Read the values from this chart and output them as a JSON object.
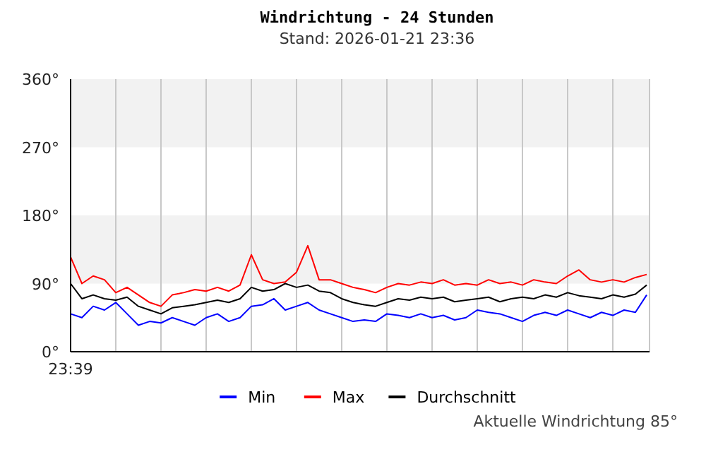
{
  "chart_data": {
    "type": "line",
    "title": "Windrichtung - 24 Stunden",
    "subtitle": "Stand: 2026-01-21 23:36",
    "categories": [
      "23:39",
      null,
      null,
      null,
      null,
      null,
      null,
      null,
      null,
      null,
      null,
      null,
      null,
      null,
      null,
      null,
      null,
      null,
      null,
      null,
      null,
      null,
      null,
      null,
      null,
      null,
      null,
      null,
      null,
      null,
      null,
      null,
      null,
      null,
      null,
      null,
      null,
      null,
      null,
      null,
      null,
      null,
      null,
      null,
      null,
      null,
      null,
      null,
      null,
      null,
      null,
      null
    ],
    "series": [
      {
        "name": "Min",
        "color": "#0000ff",
        "values": [
          50,
          45,
          60,
          55,
          65,
          50,
          35,
          40,
          38,
          45,
          40,
          35,
          45,
          50,
          40,
          45,
          60,
          62,
          70,
          55,
          60,
          65,
          55,
          50,
          45,
          40,
          42,
          40,
          50,
          48,
          45,
          50,
          45,
          48,
          42,
          45,
          55,
          52,
          50,
          45,
          40,
          48,
          52,
          48,
          55,
          50,
          45,
          52,
          48,
          55,
          52,
          75
        ]
      },
      {
        "name": "Max",
        "color": "#ff0000",
        "values": [
          125,
          90,
          100,
          95,
          78,
          85,
          75,
          65,
          60,
          75,
          78,
          82,
          80,
          85,
          80,
          88,
          128,
          95,
          90,
          92,
          105,
          140,
          95,
          95,
          90,
          85,
          82,
          78,
          85,
          90,
          88,
          92,
          90,
          95,
          88,
          90,
          88,
          95,
          90,
          92,
          88,
          95,
          92,
          90,
          100,
          108,
          95,
          92,
          95,
          92,
          98,
          102
        ]
      },
      {
        "name": "Durchschnitt",
        "color": "#000000",
        "values": [
          90,
          70,
          75,
          70,
          68,
          72,
          60,
          55,
          50,
          58,
          60,
          62,
          65,
          68,
          65,
          70,
          85,
          80,
          82,
          90,
          85,
          88,
          80,
          78,
          70,
          65,
          62,
          60,
          65,
          70,
          68,
          72,
          70,
          72,
          66,
          68,
          70,
          72,
          66,
          70,
          72,
          70,
          75,
          72,
          78,
          74,
          72,
          70,
          75,
          72,
          76,
          88
        ]
      }
    ],
    "ylim": [
      0,
      360
    ],
    "yticks": [
      {
        "value": 0,
        "label": "0°"
      },
      {
        "value": 90,
        "label": "90°"
      },
      {
        "value": 180,
        "label": "180°"
      },
      {
        "value": 270,
        "label": "270°"
      },
      {
        "value": 360,
        "label": "360°"
      }
    ],
    "bands": [
      {
        "axis": "y",
        "from": 90,
        "to": 180,
        "color": "#f2f2f2"
      },
      {
        "axis": "y",
        "from": 270,
        "to": 360,
        "color": "#f2f2f2"
      }
    ],
    "grid": "x",
    "legend": "bottom",
    "marker": "none",
    "line_style": "solid",
    "annotations": [
      "Aktuelle Windrichtung 85°"
    ]
  }
}
